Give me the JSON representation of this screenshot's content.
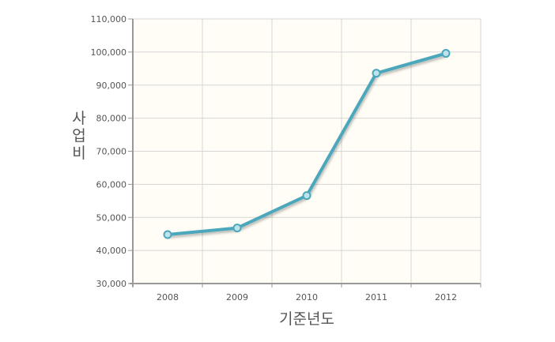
{
  "chart_data": {
    "type": "line",
    "title": "",
    "xlabel": "기준년도",
    "ylabel": "사업비",
    "categories": [
      "2008",
      "2009",
      "2010",
      "2011",
      "2012"
    ],
    "series": [
      {
        "values": [
          44800,
          46800,
          56600,
          93600,
          99600
        ],
        "color": "#4ba8bc"
      }
    ],
    "ylim": [
      30000,
      110000
    ],
    "yticks": [
      30000,
      40000,
      50000,
      60000,
      70000,
      80000,
      90000,
      100000,
      110000
    ],
    "ytick_labels": [
      "30,000",
      "40,000",
      "50,000",
      "60,000",
      "70,000",
      "80,000",
      "90,000",
      "100,000",
      "110,000"
    ],
    "grid": true,
    "legend": "none",
    "plot_background": "#fffdf5",
    "grid_color": "#d6d6d6",
    "axis_color": "#999999"
  }
}
